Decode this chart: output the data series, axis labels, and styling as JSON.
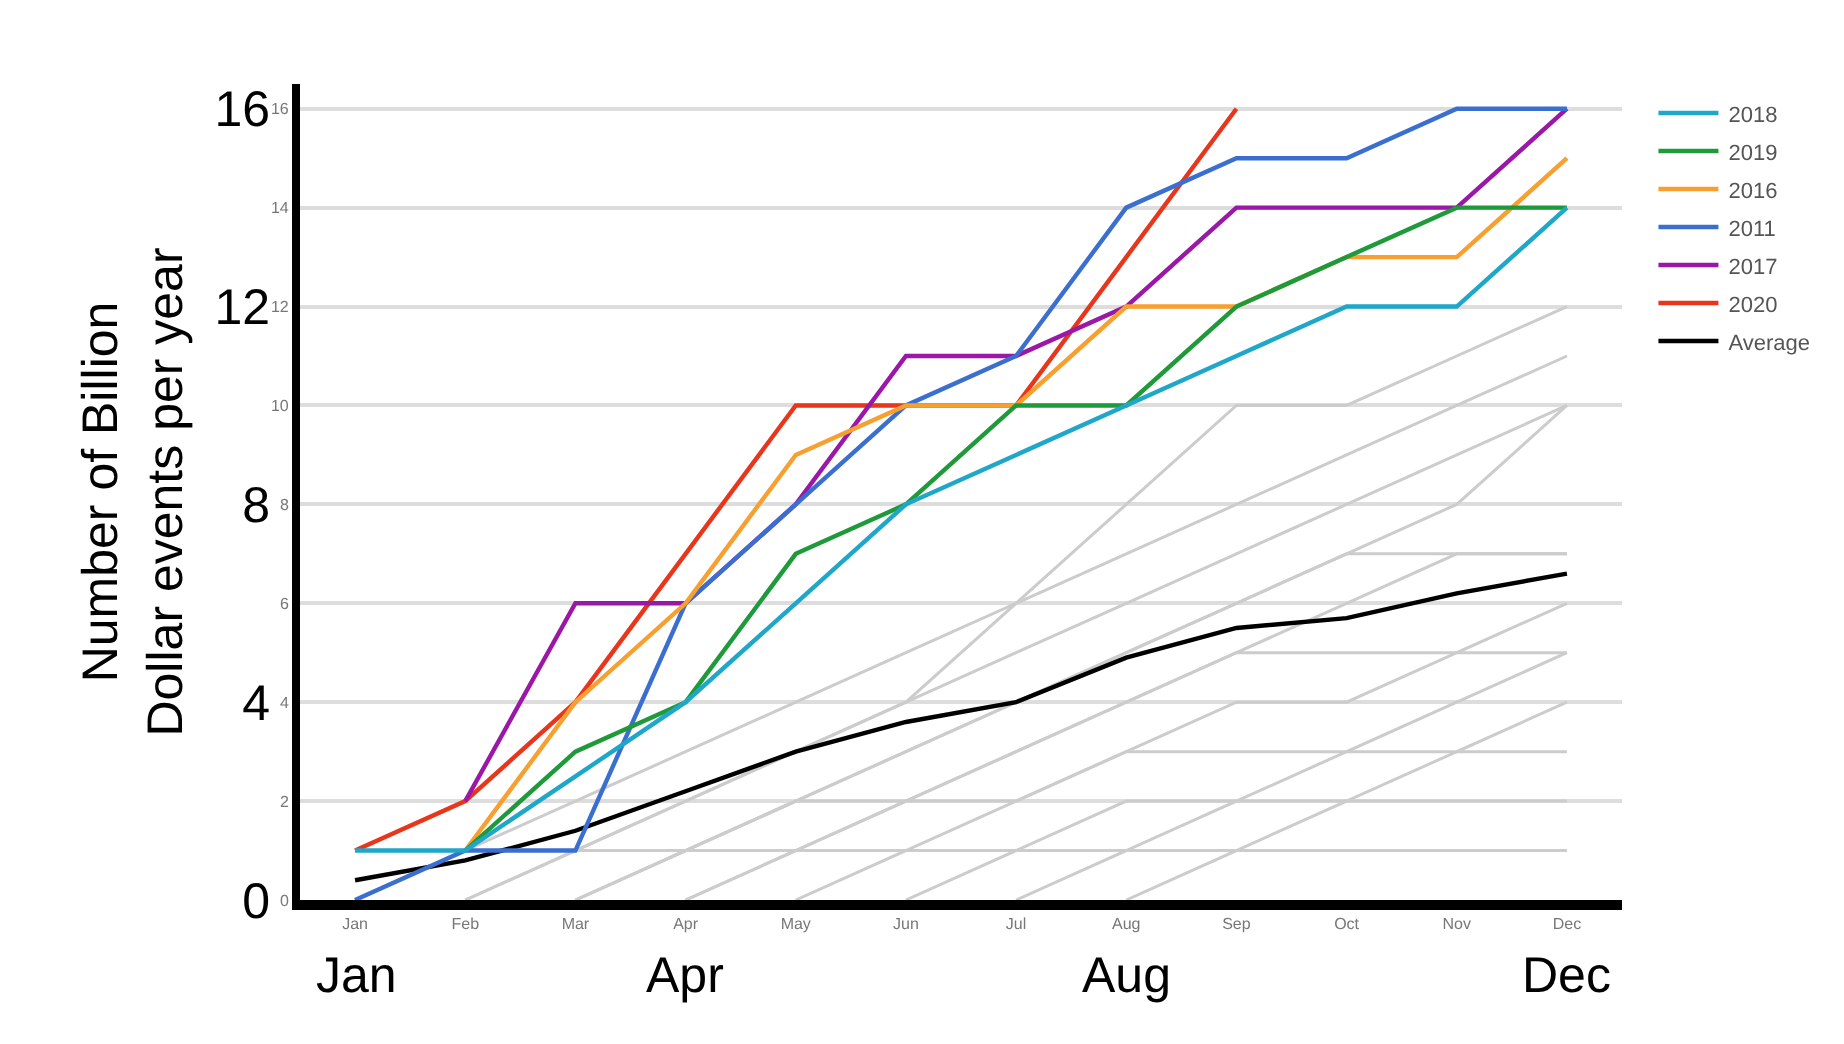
{
  "chart_data": {
    "type": "line",
    "y2label": "Number of Billion\nDollar events per year",
    "categories": [
      "Jan",
      "Feb",
      "Mar",
      "Apr",
      "May",
      "Jun",
      "Jul",
      "Aug",
      "Sep",
      "Oct",
      "Nov",
      "Dec"
    ],
    "annotations": [
      "Jan",
      "Apr",
      "Aug",
      "Dec"
    ],
    "ylim": [
      0,
      16.5
    ],
    "yticks": [
      0,
      2,
      4,
      6,
      8,
      10,
      12,
      14,
      16
    ],
    "y2lim": [
      0,
      16.5
    ],
    "y2ticks": [
      0,
      4,
      8,
      12,
      16
    ],
    "grid": "y",
    "legend": "top right",
    "series": [
      {
        "color": "#cccccc",
        "values": [
          0,
          1,
          2,
          3,
          4,
          5,
          6,
          8,
          10,
          10,
          11,
          12
        ]
      },
      {
        "color": "#cccccc",
        "values": [
          0,
          1,
          1,
          2,
          3,
          4,
          6,
          7,
          8,
          9,
          10,
          11
        ]
      },
      {
        "color": "#cccccc",
        "values": [
          null,
          0,
          1,
          2,
          3,
          4,
          5,
          6,
          7,
          8,
          9,
          10
        ]
      },
      {
        "color": "#cccccc",
        "values": [
          null,
          null,
          0,
          1,
          2,
          3,
          4,
          5,
          6,
          7,
          8,
          10
        ]
      },
      {
        "color": "#cccccc",
        "values": [
          null,
          null,
          0,
          1,
          2,
          3,
          4,
          5,
          6,
          7,
          7,
          7
        ]
      },
      {
        "color": "#cccccc",
        "values": [
          null,
          0,
          1,
          1,
          2,
          2,
          3,
          4,
          5,
          6,
          7,
          7
        ]
      },
      {
        "color": "#cccccc",
        "values": [
          null,
          null,
          null,
          0,
          1,
          2,
          3,
          4,
          5,
          5,
          5,
          6
        ]
      },
      {
        "color": "#cccccc",
        "values": [
          null,
          null,
          0,
          1,
          1,
          2,
          2,
          3,
          4,
          4,
          5,
          5
        ]
      },
      {
        "color": "#cccccc",
        "values": [
          null,
          null,
          null,
          0,
          1,
          1,
          2,
          3,
          3,
          3,
          4,
          5
        ]
      },
      {
        "color": "#cccccc",
        "values": [
          null,
          null,
          null,
          null,
          0,
          1,
          1,
          2,
          2,
          3,
          3,
          4
        ]
      },
      {
        "color": "#cccccc",
        "values": [
          null,
          null,
          null,
          null,
          null,
          0,
          1,
          1,
          2,
          2,
          3,
          3
        ]
      },
      {
        "color": "#cccccc",
        "values": [
          null,
          null,
          null,
          null,
          null,
          null,
          0,
          1,
          1,
          2,
          2,
          2
        ]
      },
      {
        "color": "#cccccc",
        "values": [
          null,
          null,
          null,
          null,
          null,
          null,
          null,
          0,
          1,
          1,
          1,
          1
        ]
      },
      {
        "name": "2018",
        "color": "#1fa7c9",
        "values": [
          1,
          1,
          2.5,
          4,
          6,
          8,
          9,
          10,
          11,
          12,
          12,
          14
        ]
      },
      {
        "name": "2019",
        "color": "#1e9a3a",
        "values": [
          null,
          1,
          3,
          4,
          7,
          8,
          10,
          10,
          12,
          13,
          14,
          14
        ]
      },
      {
        "name": "2016",
        "color": "#f7a030",
        "values": [
          null,
          1,
          4,
          6,
          9,
          10,
          10,
          12,
          12,
          13,
          13,
          15
        ]
      },
      {
        "name": "2011",
        "color": "#3a6fd0",
        "values": [
          0,
          1,
          1,
          6,
          8,
          10,
          11,
          14,
          15,
          15,
          16,
          16
        ]
      },
      {
        "name": "2017",
        "color": "#9b17a8",
        "values": [
          null,
          2,
          6,
          6,
          8,
          11,
          11,
          12,
          14,
          14,
          14,
          16
        ]
      },
      {
        "name": "2020",
        "color": "#e8361c",
        "values": [
          1,
          2,
          4,
          7,
          10,
          10,
          10,
          13,
          16,
          null,
          null,
          null
        ]
      },
      {
        "name": "Average",
        "color": "#000000",
        "values": [
          0.4,
          0.8,
          1.4,
          2.2,
          3.0,
          3.6,
          4.0,
          4.9,
          5.5,
          5.7,
          6.2,
          6.6
        ]
      }
    ]
  }
}
